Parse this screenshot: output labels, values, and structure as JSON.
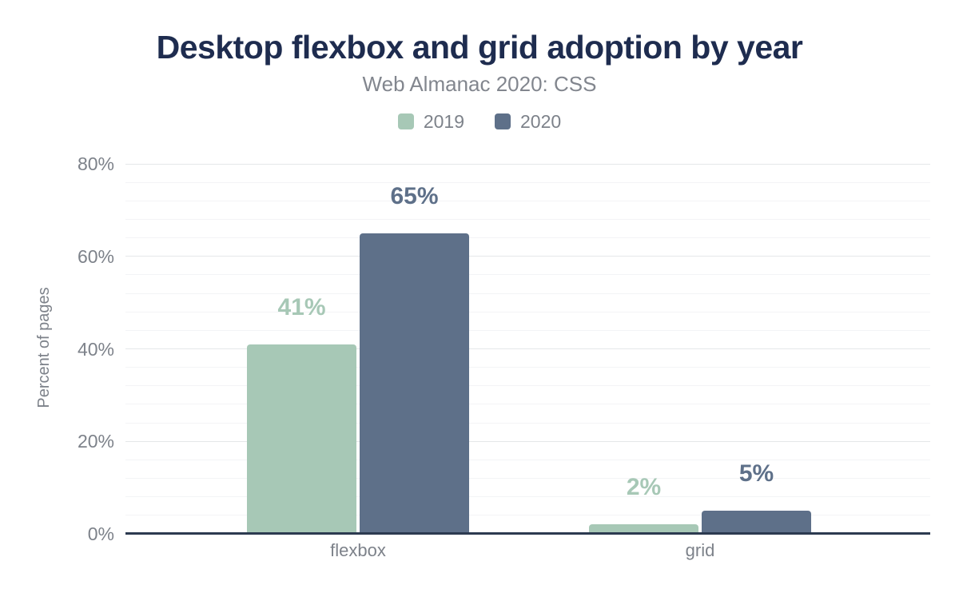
{
  "chart_data": {
    "type": "bar",
    "title": "Desktop flexbox and grid adoption by year",
    "subtitle": "Web Almanac 2020: CSS",
    "ylabel": "Percent of pages",
    "categories": [
      "flexbox",
      "grid"
    ],
    "series": [
      {
        "name": "2019",
        "color": "#a7c8b6",
        "values": [
          41,
          2
        ],
        "labels": [
          "41%",
          "2%"
        ]
      },
      {
        "name": "2020",
        "color": "#5e7089",
        "values": [
          65,
          5
        ],
        "labels": [
          "65%",
          "5%"
        ]
      }
    ],
    "y_axis": {
      "ticks": [
        {
          "value": 0,
          "label": "0%"
        },
        {
          "value": 20,
          "label": "20%"
        },
        {
          "value": 40,
          "label": "40%"
        },
        {
          "value": 60,
          "label": "60%"
        },
        {
          "value": 80,
          "label": "80%"
        }
      ],
      "max": 84,
      "minor_step": 4,
      "major_step": 20
    },
    "legend_position": "top",
    "grid": true,
    "colors": {
      "title": "#1e2c4f",
      "subtitle": "#82868e",
      "axis_text": "#7d828a",
      "baseline": "#2c3a50",
      "gridline_major": "#e5e7e9",
      "gridline_minor": "#f3f4f6",
      "background": "#ffffff"
    }
  }
}
